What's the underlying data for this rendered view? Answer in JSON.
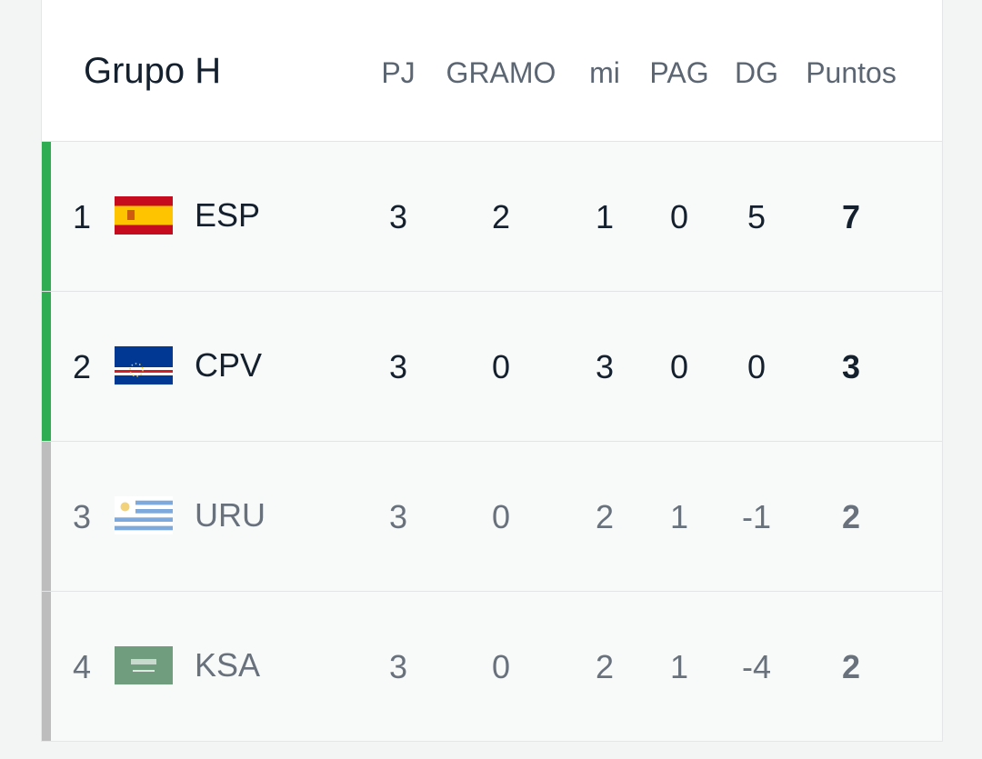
{
  "header": {
    "title": "Grupo H"
  },
  "table": {
    "columns": [
      "PJ",
      "GRAMO",
      "mi",
      "PAG",
      "DG",
      "Puntos"
    ],
    "rows": [
      {
        "pos": 1,
        "team": "ESP",
        "stats": [
          3,
          2,
          1,
          0,
          5,
          7
        ]
      },
      {
        "pos": 2,
        "team": "CPV",
        "stats": [
          3,
          0,
          3,
          0,
          0,
          3
        ]
      },
      {
        "pos": 3,
        "team": "URU",
        "stats": [
          3,
          0,
          2,
          1,
          -1,
          2
        ]
      },
      {
        "pos": 4,
        "team": "KSA",
        "stats": [
          3,
          0,
          2,
          1,
          -4,
          2
        ]
      }
    ]
  }
}
